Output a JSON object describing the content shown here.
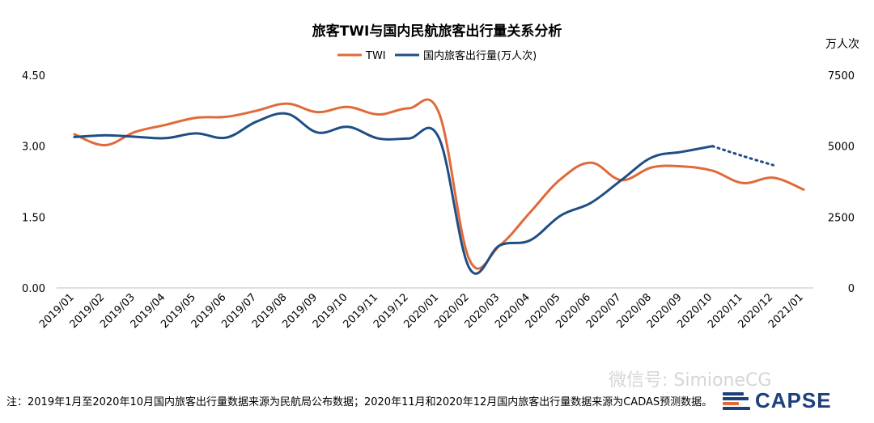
{
  "chart_data": {
    "type": "line",
    "title": "旅客TWI与国内民航旅客出行量关系分析",
    "y2_unit_label": "万人次",
    "categories": [
      "2019/01",
      "2019/02",
      "2019/03",
      "2019/04",
      "2019/05",
      "2019/06",
      "2019/07",
      "2019/08",
      "2019/09",
      "2019/10",
      "2019/11",
      "2019/12",
      "2020/01",
      "2020/02",
      "2020/03",
      "2020/04",
      "2020/05",
      "2020/06",
      "2020/07",
      "2020/08",
      "2020/09",
      "2020/10",
      "2020/11",
      "2020/12",
      "2021/01"
    ],
    "y_left": {
      "ticks": [
        "0.00",
        "1.50",
        "3.00",
        "4.50"
      ],
      "ylim": [
        0,
        4.5
      ]
    },
    "y_right": {
      "ticks": [
        "0",
        "2500",
        "5000",
        "7500"
      ],
      "ylim": [
        0,
        7500
      ]
    },
    "series": [
      {
        "name": "TWI",
        "axis": "left",
        "color": "#e06a3a",
        "values": [
          3.25,
          3.02,
          3.3,
          3.45,
          3.6,
          3.62,
          3.75,
          3.9,
          3.72,
          3.83,
          3.67,
          3.8,
          3.7,
          0.6,
          0.9,
          1.6,
          2.3,
          2.65,
          2.28,
          2.55,
          2.57,
          2.48,
          2.22,
          2.33,
          2.08
        ]
      },
      {
        "name": "国内旅客出行量(万人次)",
        "axis": "right",
        "color": "#1f4e85",
        "values": [
          5320,
          5380,
          5330,
          5280,
          5450,
          5300,
          5870,
          6140,
          5480,
          5680,
          5270,
          5270,
          5280,
          700,
          1500,
          1680,
          2550,
          3000,
          3800,
          4600,
          4800,
          5000,
          4650,
          4330,
          null
        ],
        "dashed_from_index": 21
      }
    ],
    "grid": false,
    "legend_position": "top-center"
  },
  "footnote": "注：2019年1月至2020年10月国内旅客出行量数据来源为民航局公布数据；2020年11月和2020年12月国内旅客出行量数据来源为CADAS预测数据。",
  "watermark": "微信号: SimioneCG",
  "logo": {
    "text": "CAPSE",
    "colors": [
      "#1d3f7a",
      "#e06a3a"
    ]
  }
}
